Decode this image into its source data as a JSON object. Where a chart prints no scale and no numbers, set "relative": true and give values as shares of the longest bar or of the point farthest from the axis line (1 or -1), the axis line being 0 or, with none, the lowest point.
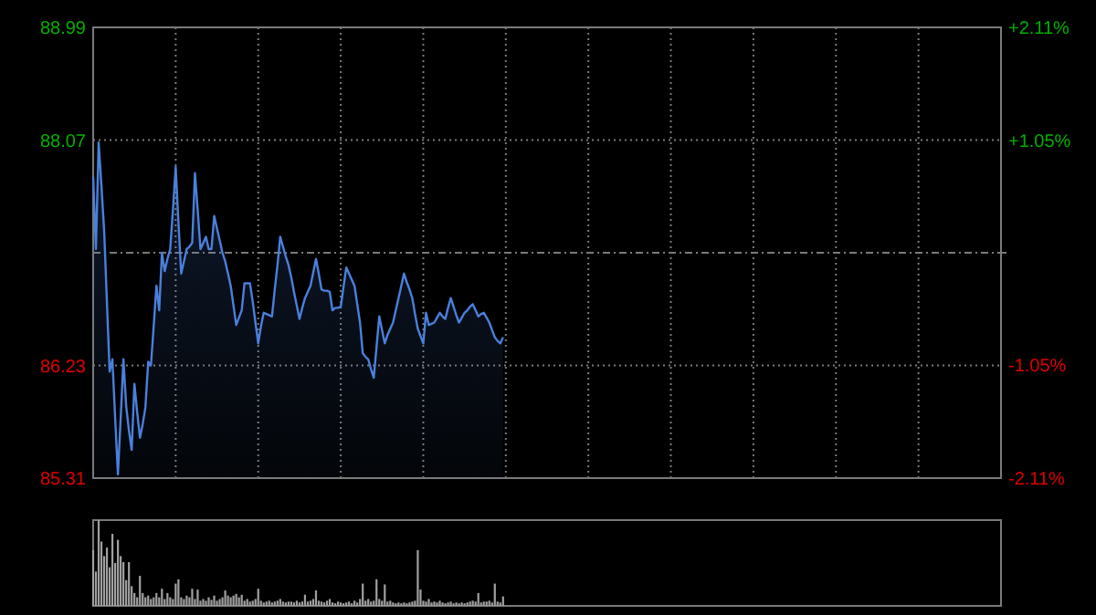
{
  "chart_data": [
    {
      "type": "line",
      "categories": [
        null,
        null,
        null,
        null,
        null,
        null,
        null,
        null,
        null,
        null,
        null,
        null,
        null,
        null,
        null,
        null,
        null,
        null,
        null,
        null,
        null,
        null,
        null,
        null,
        null,
        null,
        null,
        null,
        null,
        null,
        null,
        null,
        null,
        null,
        null,
        null,
        null,
        null,
        null,
        null,
        null,
        null,
        null,
        null,
        null,
        null,
        null,
        null,
        null,
        null,
        null,
        null,
        null,
        null,
        null,
        null,
        null,
        null,
        null,
        null,
        null,
        null,
        null,
        null,
        null,
        null,
        null,
        null,
        null,
        null,
        null,
        null,
        null,
        null,
        null,
        null,
        null,
        null,
        null,
        null,
        null,
        null,
        null,
        null,
        null,
        null,
        null,
        null,
        null,
        null,
        null,
        null,
        null,
        null,
        null,
        null,
        null,
        null,
        null,
        null,
        null,
        null,
        null,
        null,
        null,
        null,
        null,
        null,
        null,
        null,
        null,
        null,
        null,
        null,
        null,
        null,
        null,
        null,
        null,
        null,
        null,
        null,
        null,
        null,
        null,
        null,
        null,
        null,
        null,
        null,
        null,
        null,
        null,
        null,
        null,
        null,
        null,
        null,
        null,
        null,
        null,
        null,
        null,
        null,
        null,
        null,
        null,
        null,
        null,
        null,
        null,
        null,
        null,
        null,
        null,
        null,
        null,
        null,
        null,
        null,
        null,
        null,
        null,
        null,
        null,
        null,
        null,
        null,
        null,
        null,
        null,
        null,
        null,
        null,
        null,
        null,
        null,
        null,
        null,
        null,
        null,
        null,
        null,
        null,
        null,
        null,
        null,
        null,
        null,
        null,
        null,
        null,
        null,
        null,
        null,
        null,
        null,
        null,
        null,
        null,
        null,
        null,
        null,
        null,
        null,
        null,
        null,
        null,
        null,
        null,
        null,
        null,
        null,
        null,
        null,
        null,
        null,
        null,
        null,
        null,
        null,
        null,
        null,
        null,
        null,
        null,
        null,
        null,
        null,
        null,
        null,
        null,
        null,
        null,
        null,
        null,
        null,
        null,
        null,
        null,
        null,
        null,
        null,
        null,
        null,
        null,
        null,
        null,
        null,
        null,
        null,
        null,
        null,
        null,
        null,
        null,
        null,
        null,
        null,
        null,
        null,
        null,
        null,
        null,
        null,
        null,
        null,
        null,
        null,
        null,
        null,
        null,
        null,
        null,
        null,
        null,
        null,
        null,
        null,
        null,
        null,
        null,
        null,
        null,
        null,
        null,
        null,
        null,
        null,
        null,
        null,
        null,
        null,
        null,
        null,
        null,
        null,
        null,
        null,
        null,
        null,
        null,
        null,
        null,
        null,
        null,
        null,
        null,
        null,
        null,
        null,
        null,
        null,
        null,
        null,
        null,
        null,
        null,
        null,
        null,
        null,
        null,
        null,
        null,
        null,
        null,
        null,
        null,
        null,
        null,
        null
      ],
      "series": [
        {
          "color": "#4a80dc",
          "values": [
            87.77,
            87.18,
            88.05,
            87.7,
            87.33,
            86.75,
            86.18,
            86.28,
            85.8,
            85.34,
            85.8,
            86.28,
            85.9,
            85.7,
            85.54,
            86.08,
            85.85,
            85.64,
            85.75,
            85.89,
            86.26,
            86.23,
            86.55,
            86.88,
            86.68,
            87.15,
            87.0,
            87.1,
            87.18,
            87.5,
            87.85,
            87.4,
            86.98,
            87.08,
            87.18,
            87.2,
            87.23,
            87.8,
            87.5,
            87.18,
            87.23,
            87.28,
            87.18,
            87.18,
            87.45,
            87.35,
            87.25,
            87.15,
            87.08,
            86.98,
            86.88,
            86.72,
            86.56,
            86.62,
            86.68,
            86.9,
            86.9,
            86.9,
            86.75,
            86.58,
            86.41,
            86.55,
            86.66,
            86.65,
            86.64,
            86.63,
            86.85,
            87.05,
            87.28,
            87.2,
            87.12,
            87.05,
            86.95,
            86.83,
            86.72,
            86.61,
            86.7,
            86.78,
            86.83,
            86.88,
            86.99,
            87.1,
            86.98,
            86.85,
            86.84,
            86.84,
            86.83,
            86.68,
            86.7,
            86.7,
            86.71,
            86.87,
            87.03,
            86.98,
            86.93,
            86.88,
            86.73,
            86.58,
            86.33,
            86.3,
            86.28,
            86.2,
            86.13,
            86.38,
            86.63,
            86.52,
            86.41,
            86.48,
            86.53,
            86.58,
            86.68,
            86.78,
            86.88,
            86.98,
            86.91,
            86.85,
            86.78,
            86.65,
            86.53,
            86.47,
            86.41,
            86.66,
            86.56,
            86.57,
            86.58,
            86.62,
            86.66,
            86.63,
            86.61,
            86.7,
            86.78,
            86.71,
            86.64,
            86.58,
            86.62,
            86.66,
            86.68,
            86.71,
            86.73,
            86.68,
            86.63,
            86.65,
            86.66,
            86.62,
            86.58,
            86.52,
            86.46,
            86.43,
            86.41,
            86.46,
            null,
            null,
            null,
            null,
            null,
            null,
            null,
            null,
            null,
            null,
            null,
            null,
            null,
            null,
            null,
            null,
            null,
            null,
            null,
            null,
            null,
            null,
            null,
            null,
            null,
            null,
            null,
            null,
            null,
            null,
            null,
            null,
            null,
            null,
            null,
            null,
            null,
            null,
            null,
            null,
            null,
            null,
            null,
            null,
            null,
            null,
            null,
            null,
            null,
            null,
            null,
            null,
            null,
            null,
            null,
            null,
            null,
            null,
            null,
            null,
            null,
            null,
            null,
            null,
            null,
            null,
            null,
            null,
            null,
            null,
            null,
            null,
            null,
            null,
            null,
            null,
            null,
            null,
            null,
            null,
            null,
            null,
            null,
            null,
            null,
            null,
            null,
            null,
            null,
            null,
            null,
            null,
            null,
            null,
            null,
            null,
            null,
            null,
            null,
            null,
            null,
            null,
            null,
            null,
            null,
            null,
            null,
            null,
            null,
            null,
            null,
            null,
            null,
            null,
            null,
            null,
            null,
            null,
            null,
            null,
            null,
            null,
            null,
            null,
            null,
            null,
            null,
            null,
            null,
            null,
            null,
            null,
            null,
            null,
            null,
            null,
            null,
            null,
            null,
            null,
            null,
            null,
            null,
            null,
            null,
            null,
            null,
            null,
            null,
            null,
            null,
            null,
            null,
            null,
            null,
            null,
            null,
            null,
            null,
            null,
            null,
            null,
            null,
            null,
            null,
            null,
            null,
            null,
            null,
            null,
            null,
            null,
            null,
            null,
            null,
            null,
            null,
            null,
            null,
            null,
            null
          ]
        }
      ],
      "ylim": [
        85.31,
        88.99
      ],
      "yticks": [
        85.31,
        86.23,
        {
          "value": 87.15,
          "label": null
        },
        88.07,
        88.99
      ],
      "y2lim": [
        -2.11,
        2.11
      ],
      "y2ticks": [
        {
          "value": -2.11,
          "label": "-2.11%"
        },
        {
          "value": -1.05,
          "label": "-1.05%"
        },
        {
          "value": 0,
          "label": null
        },
        {
          "value": 1.05,
          "label": "+1.05%"
        },
        {
          "value": 2.11,
          "label": "+2.11%"
        }
      ],
      "tick_labels": "y",
      "grid": true,
      "line_style": "solid"
    },
    {
      "type": "bar",
      "relative": true,
      "categories": [
        null,
        null,
        null,
        null,
        null,
        null,
        null,
        null,
        null,
        null,
        null,
        null,
        null,
        null,
        null,
        null,
        null,
        null,
        null,
        null,
        null,
        null,
        null,
        null,
        null,
        null,
        null,
        null,
        null,
        null,
        null,
        null,
        null,
        null,
        null,
        null,
        null,
        null,
        null,
        null,
        null,
        null,
        null,
        null,
        null,
        null,
        null,
        null,
        null,
        null,
        null,
        null,
        null,
        null,
        null,
        null,
        null,
        null,
        null,
        null,
        null,
        null,
        null,
        null,
        null,
        null,
        null,
        null,
        null,
        null,
        null,
        null,
        null,
        null,
        null,
        null,
        null,
        null,
        null,
        null,
        null,
        null,
        null,
        null,
        null,
        null,
        null,
        null,
        null,
        null,
        null,
        null,
        null,
        null,
        null,
        null,
        null,
        null,
        null,
        null,
        null,
        null,
        null,
        null,
        null,
        null,
        null,
        null,
        null,
        null,
        null,
        null,
        null,
        null,
        null,
        null,
        null,
        null,
        null,
        null,
        null,
        null,
        null,
        null,
        null,
        null,
        null,
        null,
        null,
        null,
        null,
        null,
        null,
        null,
        null,
        null,
        null,
        null,
        null,
        null,
        null,
        null,
        null,
        null,
        null,
        null,
        null,
        null,
        null,
        null,
        null,
        null,
        null,
        null,
        null,
        null,
        null,
        null,
        null,
        null,
        null,
        null,
        null,
        null,
        null,
        null,
        null,
        null,
        null,
        null,
        null,
        null,
        null,
        null,
        null,
        null,
        null,
        null,
        null,
        null,
        null,
        null,
        null,
        null,
        null,
        null,
        null,
        null,
        null,
        null,
        null,
        null,
        null,
        null,
        null,
        null,
        null,
        null,
        null,
        null,
        null,
        null,
        null,
        null,
        null,
        null,
        null,
        null,
        null,
        null,
        null,
        null,
        null,
        null,
        null,
        null,
        null,
        null,
        null,
        null,
        null,
        null,
        null,
        null,
        null,
        null,
        null,
        null,
        null,
        null,
        null,
        null,
        null,
        null,
        null,
        null,
        null,
        null,
        null,
        null,
        null,
        null,
        null,
        null,
        null,
        null,
        null,
        null,
        null,
        null,
        null,
        null,
        null,
        null,
        null,
        null,
        null,
        null,
        null,
        null,
        null,
        null,
        null,
        null,
        null,
        null,
        null,
        null,
        null,
        null,
        null,
        null,
        null,
        null,
        null,
        null,
        null,
        null,
        null,
        null,
        null,
        null,
        null,
        null,
        null,
        null,
        null,
        null,
        null,
        null,
        null,
        null,
        null,
        null,
        null,
        null,
        null,
        null,
        null,
        null,
        null,
        null,
        null,
        null,
        null,
        null,
        null,
        null,
        null,
        null,
        null,
        null,
        null,
        null,
        null,
        null,
        null,
        null,
        null,
        null,
        null,
        null,
        null,
        null,
        null,
        null,
        null,
        null,
        null,
        null,
        null
      ],
      "series": [
        {
          "color": "#a0a0a0",
          "values": [
            0.65,
            0.4,
            1.0,
            0.75,
            0.58,
            0.68,
            0.45,
            0.84,
            0.5,
            0.77,
            0.58,
            0.51,
            0.3,
            0.51,
            0.23,
            0.15,
            0.1,
            0.35,
            0.15,
            0.1,
            0.12,
            0.08,
            0.1,
            0.15,
            0.1,
            0.2,
            0.08,
            0.15,
            0.1,
            0.08,
            0.26,
            0.31,
            0.1,
            0.08,
            0.12,
            0.1,
            0.2,
            0.08,
            0.19,
            0.06,
            0.08,
            0.06,
            0.1,
            0.07,
            0.12,
            0.06,
            0.08,
            0.1,
            0.18,
            0.12,
            0.1,
            0.12,
            0.14,
            0.1,
            0.13,
            0.06,
            0.08,
            0.05,
            0.06,
            0.08,
            0.2,
            0.06,
            0.04,
            0.05,
            0.06,
            0.04,
            0.05,
            0.06,
            0.08,
            0.05,
            0.04,
            0.05,
            0.05,
            0.04,
            0.06,
            0.04,
            0.05,
            0.13,
            0.05,
            0.06,
            0.08,
            0.18,
            0.06,
            0.05,
            0.04,
            0.06,
            0.08,
            0.04,
            0.03,
            0.05,
            0.04,
            0.03,
            0.04,
            0.05,
            0.03,
            0.06,
            0.04,
            0.08,
            0.26,
            0.06,
            0.08,
            0.05,
            0.06,
            0.31,
            0.08,
            0.06,
            0.25,
            0.05,
            0.06,
            0.04,
            0.03,
            0.04,
            0.03,
            0.04,
            0.03,
            0.04,
            0.05,
            0.06,
            0.65,
            0.19,
            0.06,
            0.05,
            0.08,
            0.04,
            0.05,
            0.04,
            0.06,
            0.04,
            0.03,
            0.04,
            0.05,
            0.03,
            0.04,
            0.03,
            0.04,
            0.03,
            0.04,
            0.05,
            0.06,
            0.05,
            0.15,
            0.04,
            0.05,
            0.05,
            0.06,
            0.04,
            0.26,
            0.05,
            0.04,
            0.11,
            null,
            null,
            null,
            null,
            null,
            null,
            null,
            null,
            null,
            null,
            null,
            null,
            null,
            null,
            null,
            null,
            null,
            null,
            null,
            null,
            null,
            null,
            null,
            null,
            null,
            null,
            null,
            null,
            null,
            null,
            null,
            null,
            null,
            null,
            null,
            null,
            null,
            null,
            null,
            null,
            null,
            null,
            null,
            null,
            null,
            null,
            null,
            null,
            null,
            null,
            null,
            null,
            null,
            null,
            null,
            null,
            null,
            null,
            null,
            null,
            null,
            null,
            null,
            null,
            null,
            null,
            null,
            null,
            null,
            null,
            null,
            null,
            null,
            null,
            null,
            null,
            null,
            null,
            null,
            null,
            null,
            null,
            null,
            null,
            null,
            null,
            null,
            null,
            null,
            null,
            null,
            null,
            null,
            null,
            null,
            null,
            null,
            null,
            null,
            null,
            null,
            null,
            null,
            null,
            null,
            null,
            null,
            null,
            null,
            null,
            null,
            null,
            null,
            null,
            null,
            null,
            null,
            null,
            null,
            null,
            null,
            null,
            null,
            null,
            null,
            null,
            null,
            null,
            null,
            null,
            null,
            null,
            null,
            null,
            null,
            null,
            null,
            null,
            null,
            null,
            null,
            null,
            null,
            null,
            null,
            null,
            null,
            null,
            null,
            null,
            null,
            null,
            null,
            null,
            null,
            null,
            null,
            null,
            null,
            null,
            null,
            null,
            null,
            null,
            null,
            null,
            null,
            null,
            null,
            null,
            null,
            null,
            null,
            null,
            null,
            null,
            null,
            null,
            null,
            null,
            null
          ]
        }
      ],
      "tick_labels": false
    }
  ]
}
